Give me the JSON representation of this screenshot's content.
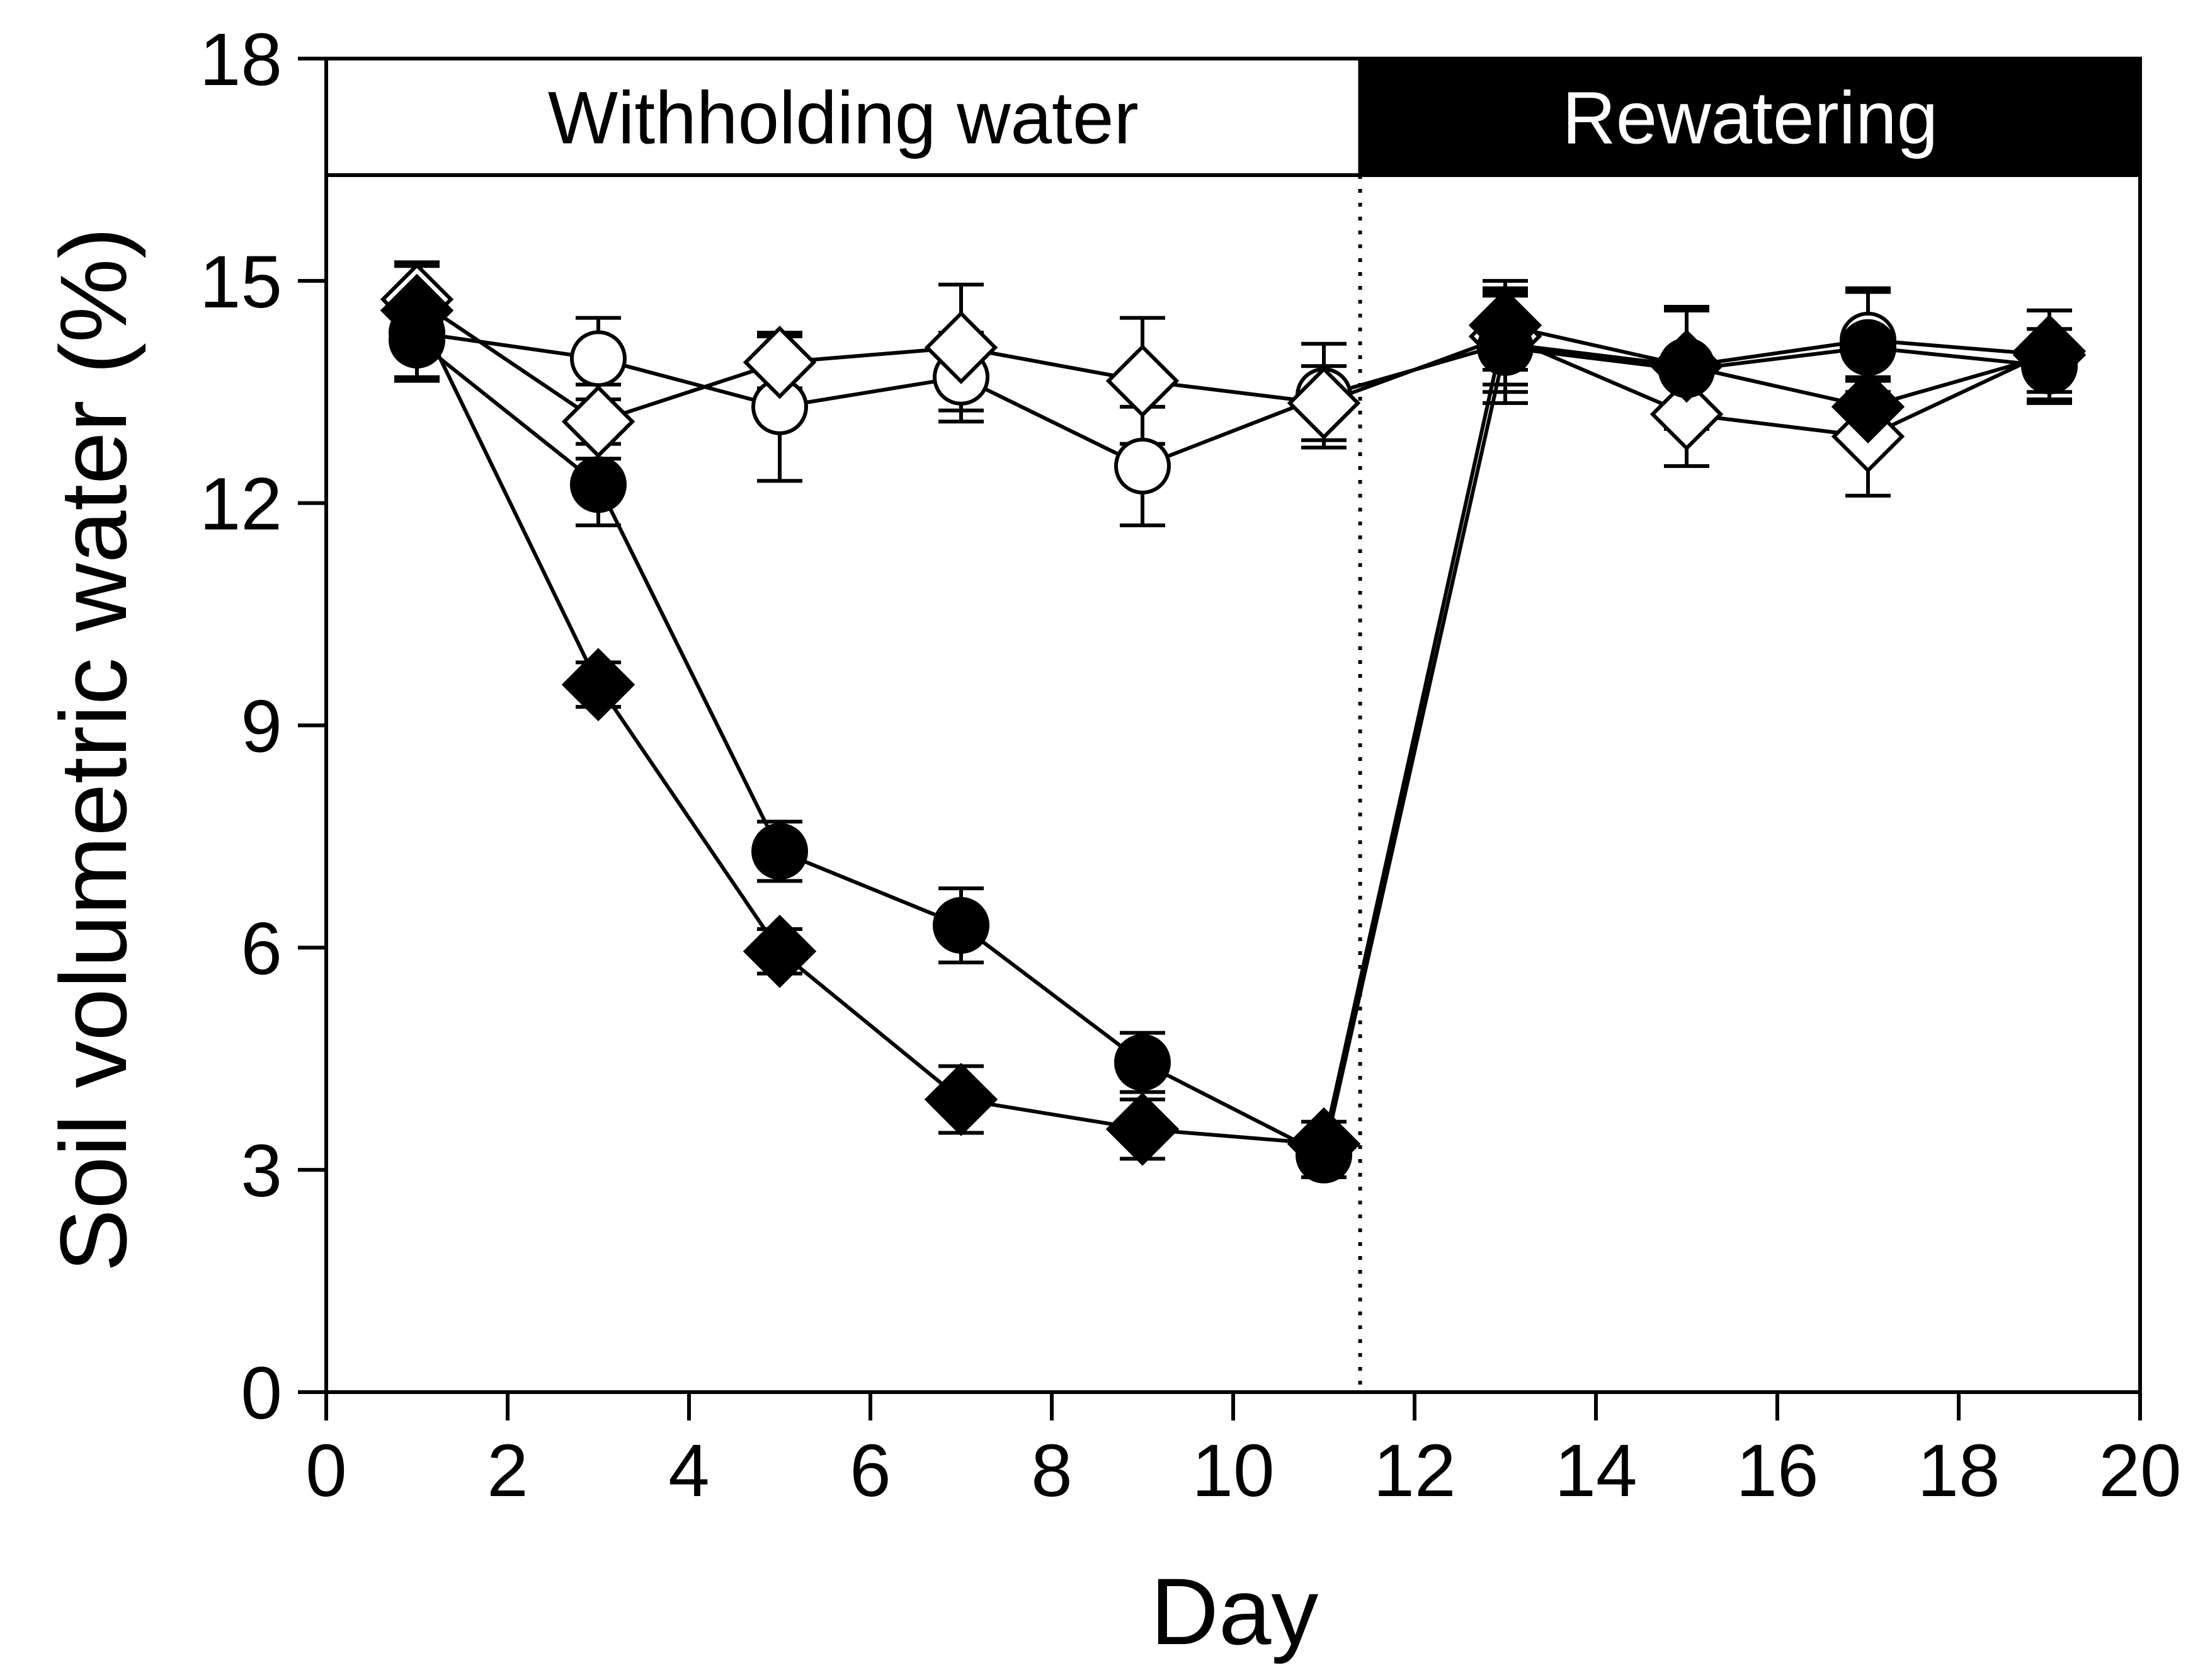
{
  "chart_data": {
    "type": "scatter",
    "title": "",
    "xlabel": "Day",
    "ylabel": "Soil volumetric water (%)",
    "xlim": [
      0,
      20
    ],
    "ylim": [
      0,
      18
    ],
    "xticks": [
      0,
      2,
      4,
      6,
      8,
      10,
      12,
      14,
      16,
      18,
      20
    ],
    "yticks": [
      0,
      3,
      6,
      9,
      12,
      15,
      18
    ],
    "grid": false,
    "legend": null,
    "phases": [
      {
        "label": "Withholding water",
        "start": 0,
        "end": 11.4,
        "fill": "#ffffff",
        "text_color": "#000000"
      },
      {
        "label": "Rewatering",
        "start": 11.4,
        "end": 20,
        "fill": "#000000",
        "text_color": "#ffffff"
      }
    ],
    "phase_divider_x": 11.4,
    "series": [
      {
        "name": "open-circle",
        "marker": "circle",
        "filled": false,
        "x": [
          1,
          3,
          5,
          7,
          9,
          11,
          13,
          15,
          17,
          19
        ],
        "y": [
          14.3,
          13.95,
          13.3,
          13.7,
          12.5,
          13.45,
          14.15,
          13.85,
          14.2,
          14.0
        ],
        "err": [
          0.6,
          0.55,
          1.0,
          0.6,
          0.8,
          0.7,
          0.65,
          0.75,
          0.7,
          0.6
        ]
      },
      {
        "name": "open-diamond",
        "marker": "diamond",
        "filled": false,
        "x": [
          1,
          3,
          5,
          7,
          9,
          11,
          13,
          15,
          17,
          19
        ],
        "y": [
          14.75,
          13.1,
          13.9,
          14.1,
          13.65,
          13.35,
          14.25,
          13.2,
          12.9,
          14.05
        ],
        "err": [
          0.5,
          0.5,
          0.35,
          0.85,
          0.85,
          0.5,
          0.65,
          0.7,
          0.8,
          0.55
        ]
      },
      {
        "name": "filled-circle",
        "marker": "circle",
        "filled": true,
        "x": [
          1,
          3,
          5,
          7,
          9,
          11,
          13,
          15,
          17,
          19
        ],
        "y": [
          14.2,
          12.25,
          7.3,
          6.3,
          4.45,
          3.2,
          14.1,
          13.8,
          14.1,
          13.85
        ],
        "err": [
          0.55,
          0.55,
          0.4,
          0.5,
          0.4,
          0.3,
          0.75,
          0.8,
          0.75,
          0.5
        ]
      },
      {
        "name": "filled-diamond",
        "marker": "diamond",
        "filled": true,
        "x": [
          1,
          3,
          5,
          7,
          9,
          11,
          13,
          15,
          17,
          19
        ],
        "y": [
          14.6,
          9.55,
          5.95,
          3.95,
          3.55,
          3.35,
          14.4,
          13.85,
          13.3,
          14.0
        ],
        "err": [
          0.6,
          0.3,
          0.3,
          0.45,
          0.4,
          0.3,
          0.6,
          0.8,
          0.35,
          0.6
        ]
      }
    ]
  }
}
